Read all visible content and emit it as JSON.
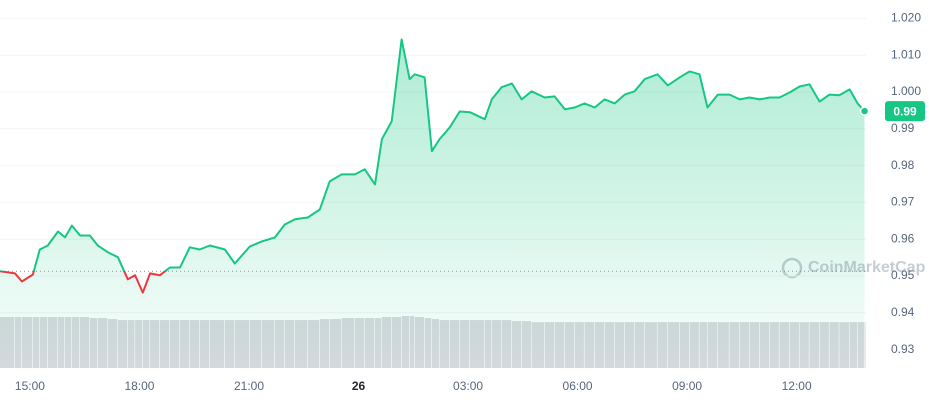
{
  "chart_data": {
    "type": "line",
    "watermark": "CoinMarketCap",
    "x": [
      14.18,
      14.59,
      14.78,
      15.08,
      15.27,
      15.49,
      15.77,
      15.96,
      16.15,
      16.37,
      16.64,
      16.86,
      17.14,
      17.41,
      17.68,
      17.88,
      18.09,
      18.29,
      18.56,
      18.83,
      19.11,
      19.38,
      19.65,
      19.93,
      20.34,
      20.61,
      21.02,
      21.35,
      21.71,
      21.98,
      22.26,
      22.61,
      22.94,
      23.21,
      23.54,
      23.9,
      24.17,
      24.45,
      24.64,
      24.91,
      25.18,
      25.4,
      25.54,
      25.81,
      26.01,
      26.22,
      26.5,
      26.77,
      27.05,
      27.46,
      27.65,
      27.92,
      28.2,
      28.47,
      28.74,
      29.1,
      29.37,
      29.65,
      29.92,
      30.19,
      30.47,
      30.74,
      31.02,
      31.29,
      31.56,
      31.84,
      32.19,
      32.47,
      32.8,
      33.07,
      33.34,
      33.56,
      33.84,
      34.16,
      34.44,
      34.71,
      34.99,
      35.26,
      35.53,
      35.81,
      36.08,
      36.35,
      36.63,
      36.9,
      37.17,
      37.45,
      37.67,
      37.86
    ],
    "series": [
      {
        "name": "Price",
        "color": "#16c784",
        "below_color": "#ea3943",
        "values": [
          0.9513,
          0.9507,
          0.9485,
          0.9504,
          0.9572,
          0.9583,
          0.9621,
          0.9605,
          0.9637,
          0.961,
          0.961,
          0.9583,
          0.9564,
          0.9551,
          0.9491,
          0.9502,
          0.9455,
          0.9507,
          0.9502,
          0.9523,
          0.9523,
          0.9578,
          0.9572,
          0.9583,
          0.9572,
          0.9534,
          0.958,
          0.9594,
          0.9605,
          0.964,
          0.9654,
          0.9659,
          0.9681,
          0.9757,
          0.9776,
          0.9776,
          0.979,
          0.9749,
          0.9872,
          0.992,
          1.0143,
          1.0035,
          1.0048,
          1.004,
          0.9839,
          0.9872,
          0.9904,
          0.9947,
          0.9945,
          0.9926,
          0.998,
          1.0013,
          1.0023,
          0.998,
          1.0002,
          0.9985,
          0.9988,
          0.9953,
          0.9958,
          0.9969,
          0.9958,
          0.998,
          0.9969,
          0.9993,
          1.0002,
          1.0035,
          1.0048,
          1.0018,
          1.004,
          1.0056,
          1.0048,
          0.9958,
          0.9993,
          0.9993,
          0.998,
          0.9985,
          0.998,
          0.9985,
          0.9985,
          0.9999,
          1.0015,
          1.0021,
          0.9974,
          0.9993,
          0.9991,
          1.0007,
          0.9969,
          0.9948
        ],
        "last_label": "0.99"
      },
      {
        "name": "Volume",
        "color": "#d7d9de",
        "values": [
          50,
          50,
          50,
          50,
          50,
          50,
          50,
          50,
          50,
          50,
          49,
          49,
          48,
          47,
          47,
          47,
          47,
          47,
          47,
          47,
          47,
          47,
          47,
          47,
          47,
          47,
          47,
          47,
          47,
          47,
          47,
          47,
          48,
          48,
          49,
          49,
          49,
          49,
          50,
          50,
          51,
          51,
          50,
          49,
          48,
          47,
          47,
          47,
          47,
          47,
          47,
          47,
          46,
          46,
          45,
          45,
          45,
          45,
          45,
          45,
          45,
          45,
          45,
          45,
          45,
          45,
          45,
          45,
          45,
          45,
          45,
          45,
          45,
          45,
          45,
          45,
          45,
          45,
          45,
          45,
          45,
          45,
          45,
          45,
          45,
          45,
          45,
          45
        ]
      }
    ],
    "baseline": 0.9513,
    "xlim": [
      14.18,
      37.9
    ],
    "xticks": [
      {
        "value": 15,
        "label": "15:00"
      },
      {
        "value": 18,
        "label": "18:00"
      },
      {
        "value": 21,
        "label": "21:00"
      },
      {
        "value": 24,
        "label": "26"
      },
      {
        "value": 27,
        "label": "03:00"
      },
      {
        "value": 30,
        "label": "06:00"
      },
      {
        "value": 33,
        "label": "09:00"
      },
      {
        "value": 36,
        "label": "12:00"
      }
    ],
    "ylim": [
      0.925,
      1.025
    ],
    "yticks": [
      0.93,
      0.94,
      0.95,
      0.96,
      0.97,
      0.98,
      0.99,
      {
        "value": 1.0,
        "label": "1.000"
      },
      {
        "value": 1.01,
        "label": "1.010"
      },
      {
        "value": 1.02,
        "label": "1.020"
      }
    ],
    "grid": true
  }
}
